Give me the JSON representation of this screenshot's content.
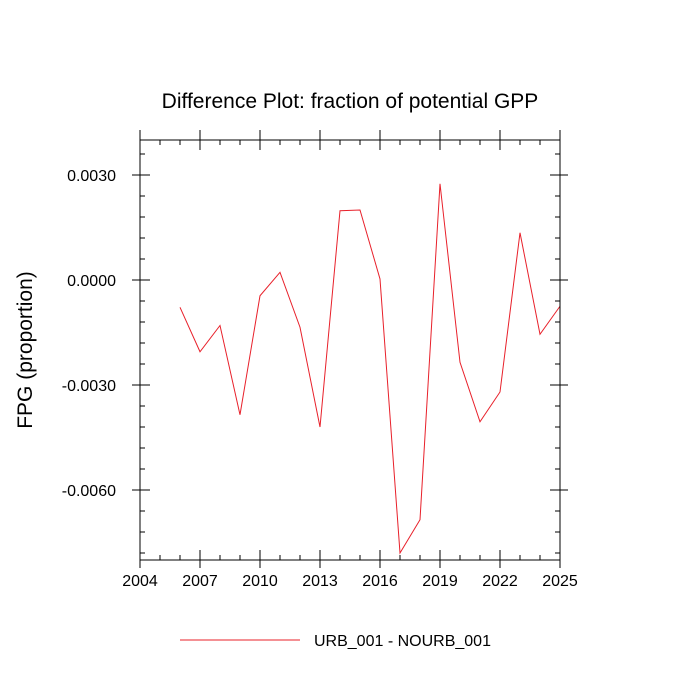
{
  "chart_data": {
    "type": "line",
    "title": "Difference Plot: fraction of potential GPP",
    "xlabel": "",
    "ylabel": "FPG  (proportion)",
    "xlim": [
      2004,
      2025
    ],
    "ylim": [
      -0.008,
      0.004
    ],
    "x_ticks": [
      2004,
      2007,
      2010,
      2013,
      2016,
      2019,
      2022,
      2025
    ],
    "x_tick_labels": [
      "2004",
      "2007",
      "2010",
      "2013",
      "2016",
      "2019",
      "2022",
      "2025"
    ],
    "y_ticks": [
      0.003,
      0.0,
      -0.003,
      -0.006
    ],
    "y_tick_labels": [
      "0.0030",
      "0.0000",
      "-0.0030",
      "-0.0060"
    ],
    "grid": false,
    "legend_position": "bottom",
    "series": [
      {
        "name": "URB_001 - NOURB_001",
        "color": "#e8202a",
        "x": [
          2006,
          2007,
          2008,
          2009,
          2010,
          2011,
          2012,
          2013,
          2014,
          2015,
          2016,
          2017,
          2018,
          2019,
          2020,
          2021,
          2022,
          2023,
          2024,
          2025
        ],
        "values": [
          -0.00078,
          -0.00205,
          -0.0013,
          -0.00385,
          -0.00045,
          0.00022,
          -0.00135,
          -0.0042,
          0.00198,
          0.002,
          3e-05,
          -0.0078,
          -0.00685,
          0.00275,
          -0.00235,
          -0.00405,
          -0.0032,
          0.00135,
          -0.00155,
          -0.00075
        ]
      }
    ]
  }
}
